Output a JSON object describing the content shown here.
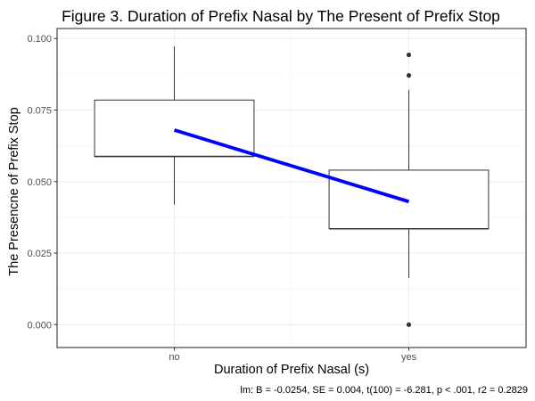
{
  "chart_data": {
    "type": "box",
    "title": "Figure 3. Duration of Prefix Nasal by The Present of Prefix Stop",
    "xlabel": "Duration of Prefix Nasal (s)",
    "ylabel": "The Presencne of Prefix Stop",
    "caption": "lm: B = -0.0254, SE = 0.004, t(100) = -6.281, p < .001, r2 = 0.2829",
    "categories": [
      "no",
      "yes"
    ],
    "ylim": [
      -0.008,
      0.1035
    ],
    "yticks": [
      0.0,
      0.025,
      0.05,
      0.075,
      0.1
    ],
    "ytick_labels": [
      "0.000",
      "0.025",
      "0.050",
      "0.075",
      "0.100"
    ],
    "grid": true,
    "boxes": [
      {
        "category": "no",
        "whisker_low": 0.042,
        "q1": 0.0588,
        "median": 0.0588,
        "q3": 0.0785,
        "whisker_high": 0.0973,
        "outliers": []
      },
      {
        "category": "yes",
        "whisker_low": 0.0163,
        "q1": 0.0335,
        "median": 0.0335,
        "q3": 0.054,
        "whisker_high": 0.082,
        "outliers": [
          0.0943,
          0.0871,
          0.0
        ]
      }
    ],
    "fit_line": {
      "label": "lm",
      "x": [
        "no",
        "yes"
      ],
      "y": [
        0.068,
        0.043
      ],
      "color": "#0000ff"
    }
  }
}
